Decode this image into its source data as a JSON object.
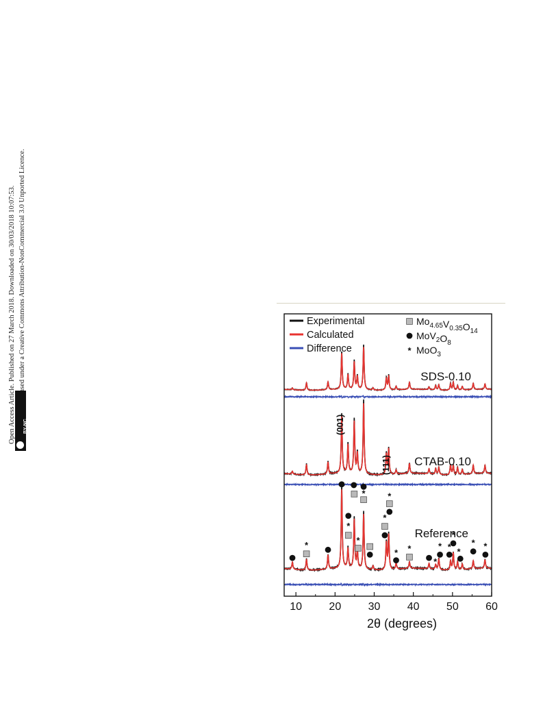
{
  "sidebar": {
    "line1": "Open Access Article. Published on 27 March 2018. Downloaded on 30/03/2018 10:07:53.",
    "line2": "This article is licensed under a Creative Commons Attribution-NonCommercial 3.0 Unported Licence.",
    "badge": "BY-NC"
  },
  "chart_data": {
    "type": "line",
    "title": "",
    "xlabel": "2θ (degrees)",
    "ylabel": "",
    "xlim": [
      7,
      60
    ],
    "xticks": [
      10,
      20,
      30,
      40,
      50,
      60
    ],
    "grid": false,
    "legend": {
      "placement": "top-left",
      "entries": [
        {
          "name": "Experimental",
          "color": "#111111"
        },
        {
          "name": "Calculated",
          "color": "#e8332f"
        },
        {
          "name": "Difference",
          "color": "#3a4fb5"
        }
      ]
    },
    "phase_legend": {
      "placement": "top-right",
      "entries": [
        {
          "marker": "square",
          "label": "Mo4.65V0.35O14",
          "main": "Mo",
          "s1": "4.65",
          "m2": "V",
          "s2": "0.35",
          "m3": "O",
          "s3": "14"
        },
        {
          "marker": "circle",
          "label": "MoV2O8",
          "main": "MoV",
          "s1": "2",
          "m2": "O",
          "s2": "8"
        },
        {
          "marker": "star",
          "label": "MoO3",
          "main": "MoO",
          "s1": "3"
        }
      ]
    },
    "series": [
      {
        "name": "SDS-0.10",
        "peaks": [
          [
            9.1,
            0.04
          ],
          [
            12.7,
            0.17
          ],
          [
            18.2,
            0.18
          ],
          [
            21.7,
            0.84
          ],
          [
            23.3,
            0.34
          ],
          [
            24.9,
            0.64
          ],
          [
            25.7,
            0.3
          ],
          [
            27.3,
            1.0
          ],
          [
            29.7,
            0.05
          ],
          [
            33.1,
            0.28
          ],
          [
            33.7,
            0.33
          ],
          [
            35.6,
            0.08
          ],
          [
            39.0,
            0.16
          ],
          [
            44.0,
            0.06
          ],
          [
            45.7,
            0.1
          ],
          [
            46.5,
            0.12
          ],
          [
            49.5,
            0.15
          ],
          [
            50.2,
            0.18
          ],
          [
            51.3,
            0.1
          ],
          [
            52.5,
            0.08
          ],
          [
            55.3,
            0.14
          ],
          [
            58.3,
            0.12
          ]
        ]
      },
      {
        "name": "CTAB-0.10",
        "peaks": [
          [
            9.1,
            0.04
          ],
          [
            12.7,
            0.15
          ],
          [
            18.2,
            0.17
          ],
          [
            21.7,
            0.8
          ],
          [
            23.3,
            0.4
          ],
          [
            24.9,
            0.73
          ],
          [
            25.7,
            0.28
          ],
          [
            27.3,
            1.0
          ],
          [
            33.1,
            0.29
          ],
          [
            33.7,
            0.36
          ],
          [
            35.6,
            0.06
          ],
          [
            39.0,
            0.14
          ],
          [
            44.0,
            0.07
          ],
          [
            45.7,
            0.08
          ],
          [
            46.5,
            0.1
          ],
          [
            49.5,
            0.14
          ],
          [
            50.2,
            0.13
          ],
          [
            51.3,
            0.1
          ],
          [
            52.5,
            0.07
          ],
          [
            55.3,
            0.12
          ],
          [
            58.3,
            0.11
          ]
        ]
      },
      {
        "name": "Reference",
        "peaks": [
          [
            9.1,
            0.09
          ],
          [
            12.7,
            0.14
          ],
          [
            18.2,
            0.18
          ],
          [
            21.7,
            1.0
          ],
          [
            23.3,
            0.25
          ],
          [
            24.9,
            0.62
          ],
          [
            25.7,
            0.22
          ],
          [
            27.3,
            0.7
          ],
          [
            29.7,
            0.05
          ],
          [
            33.1,
            0.34
          ],
          [
            33.7,
            0.44
          ],
          [
            35.6,
            0.08
          ],
          [
            39.0,
            0.08
          ],
          [
            44.0,
            0.07
          ],
          [
            45.7,
            0.06
          ],
          [
            46.5,
            0.14
          ],
          [
            49.5,
            0.11
          ],
          [
            50.2,
            0.22
          ],
          [
            51.3,
            0.1
          ],
          [
            52.5,
            0.07
          ],
          [
            55.3,
            0.1
          ],
          [
            58.3,
            0.11
          ]
        ]
      }
    ],
    "annotations": [
      {
        "text": "(001)",
        "x": 21.7,
        "series": "CTAB-0.10"
      },
      {
        "text": "(111)",
        "x": 33.4,
        "series": "CTAB-0.10"
      }
    ],
    "phase_markers": [
      {
        "marker": "circle",
        "x": 9.1,
        "level": 0.16
      },
      {
        "marker": "square",
        "x": 12.7,
        "level": 0.21
      },
      {
        "marker": "star",
        "x": 12.7,
        "level": 0.32
      },
      {
        "marker": "circle",
        "x": 18.2,
        "level": 0.26
      },
      {
        "marker": "circle",
        "x": 21.7,
        "level": 1.07
      },
      {
        "marker": "square",
        "x": 23.4,
        "level": 0.44
      },
      {
        "marker": "star",
        "x": 23.4,
        "level": 0.56
      },
      {
        "marker": "circle",
        "x": 23.4,
        "level": 0.68
      },
      {
        "marker": "circle",
        "x": 24.8,
        "level": 1.06
      },
      {
        "marker": "square",
        "x": 24.9,
        "level": 0.95
      },
      {
        "marker": "square",
        "x": 25.9,
        "level": 0.28
      },
      {
        "marker": "star",
        "x": 25.9,
        "level": 0.38
      },
      {
        "marker": "circle",
        "x": 27.3,
        "level": 1.04
      },
      {
        "marker": "star",
        "x": 27.3,
        "level": 0.96
      },
      {
        "marker": "square",
        "x": 27.3,
        "level": 0.88
      },
      {
        "marker": "square",
        "x": 28.9,
        "level": 0.3
      },
      {
        "marker": "circle",
        "x": 28.9,
        "level": 0.2
      },
      {
        "marker": "circle",
        "x": 32.7,
        "level": 0.44
      },
      {
        "marker": "square",
        "x": 32.7,
        "level": 0.55
      },
      {
        "marker": "star",
        "x": 32.7,
        "level": 0.66
      },
      {
        "marker": "circle",
        "x": 33.9,
        "level": 0.73
      },
      {
        "marker": "square",
        "x": 33.9,
        "level": 0.83
      },
      {
        "marker": "star",
        "x": 33.9,
        "level": 0.93
      },
      {
        "marker": "circle",
        "x": 35.6,
        "level": 0.13
      },
      {
        "marker": "star",
        "x": 35.6,
        "level": 0.23
      },
      {
        "marker": "square",
        "x": 39.0,
        "level": 0.17
      },
      {
        "marker": "star",
        "x": 39.0,
        "level": 0.28
      },
      {
        "marker": "circle",
        "x": 44.0,
        "level": 0.16
      },
      {
        "marker": "star",
        "x": 45.6,
        "level": 0.12
      },
      {
        "marker": "circle",
        "x": 46.8,
        "level": 0.2
      },
      {
        "marker": "star",
        "x": 46.8,
        "level": 0.31
      },
      {
        "marker": "circle",
        "x": 49.2,
        "level": 0.2
      },
      {
        "marker": "star",
        "x": 49.2,
        "level": 0.3
      },
      {
        "marker": "circle",
        "x": 50.2,
        "level": 0.34
      },
      {
        "marker": "star",
        "x": 50.2,
        "level": 0.45
      },
      {
        "marker": "circle",
        "x": 52.0,
        "level": 0.15
      },
      {
        "marker": "star",
        "x": 51.6,
        "level": 0.24
      },
      {
        "marker": "circle",
        "x": 55.3,
        "level": 0.24
      },
      {
        "marker": "star",
        "x": 55.3,
        "level": 0.35
      },
      {
        "marker": "circle",
        "x": 58.4,
        "level": 0.2
      },
      {
        "marker": "star",
        "x": 58.4,
        "level": 0.31
      }
    ]
  }
}
